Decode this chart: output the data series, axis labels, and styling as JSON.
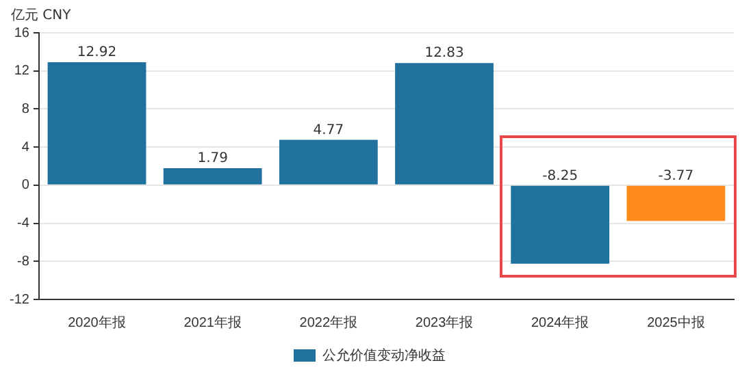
{
  "chart_data": {
    "type": "bar",
    "ylabel": "亿元  CNY",
    "categories": [
      "2020年报",
      "2021年报",
      "2022年报",
      "2023年报",
      "2024年报",
      "2025中报"
    ],
    "series": [
      {
        "name": "公允价值变动净收益",
        "color": "#21719e",
        "colors": [
          "#21719e",
          "#21719e",
          "#21719e",
          "#21719e",
          "#21719e",
          "#ff8c1a"
        ],
        "values": [
          12.92,
          1.79,
          4.77,
          12.83,
          -8.25,
          -3.77
        ]
      }
    ],
    "ylim": [
      -12,
      16
    ],
    "yticks": [
      -12,
      -8,
      -4,
      0,
      4,
      8,
      12,
      16
    ],
    "grid": "y",
    "legend": "bottom",
    "data_labels": true
  }
}
